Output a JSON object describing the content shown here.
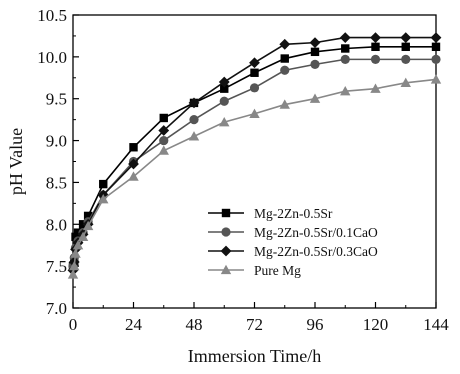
{
  "chart_data": {
    "type": "line",
    "xlabel": "Immersion Time/h",
    "ylabel": "pH Value",
    "xlim": [
      0,
      144
    ],
    "ylim": [
      7.0,
      10.5
    ],
    "xticks": [
      0,
      24,
      48,
      72,
      96,
      120,
      144
    ],
    "xtick_labels": [
      "0",
      "24",
      "48",
      "72",
      "96",
      "120",
      "144"
    ],
    "yticks": [
      7.0,
      7.5,
      8.0,
      8.5,
      9.0,
      9.5,
      10.0,
      10.5
    ],
    "ytick_labels": [
      "7.0",
      "7.5",
      "8.0",
      "8.5",
      "9.0",
      "9.5",
      "10.0",
      "10.5"
    ],
    "grid": false,
    "legend_position": "lower-right",
    "series": [
      {
        "name": "Mg-2Zn-0.5Sr",
        "marker": "square",
        "color": "#000000",
        "x": [
          0,
          0.5,
          1,
          2,
          4,
          6,
          12,
          24,
          36,
          48,
          60,
          72,
          84,
          96,
          108,
          120,
          132,
          144
        ],
        "y": [
          7.5,
          7.55,
          7.85,
          7.9,
          8.0,
          8.1,
          8.48,
          8.92,
          9.27,
          9.45,
          9.62,
          9.81,
          9.98,
          10.06,
          10.1,
          10.12,
          10.12,
          10.12
        ]
      },
      {
        "name": "Mg-2Zn-0.5Sr/0.1CaO",
        "marker": "circle",
        "color": "#555555",
        "x": [
          0,
          0.5,
          1,
          2,
          4,
          6,
          12,
          24,
          36,
          48,
          60,
          72,
          84,
          96,
          108,
          120,
          132,
          144
        ],
        "y": [
          7.5,
          7.6,
          7.72,
          7.8,
          7.9,
          8.03,
          8.35,
          8.75,
          9.0,
          9.25,
          9.47,
          9.63,
          9.84,
          9.91,
          9.97,
          9.97,
          9.97,
          9.97
        ]
      },
      {
        "name": "Mg-2Zn-0.5Sr/0.3CaO",
        "marker": "diamond",
        "color": "#111111",
        "x": [
          0,
          0.5,
          1,
          2,
          4,
          6,
          12,
          24,
          36,
          48,
          60,
          72,
          84,
          96,
          108,
          120,
          132,
          144
        ],
        "y": [
          7.45,
          7.55,
          7.7,
          7.78,
          7.88,
          8.0,
          8.35,
          8.72,
          9.12,
          9.45,
          9.7,
          9.93,
          10.15,
          10.17,
          10.23,
          10.23,
          10.23,
          10.23
        ]
      },
      {
        "name": "Pure Mg",
        "marker": "triangle",
        "color": "#888888",
        "x": [
          0,
          0.5,
          1,
          2,
          4,
          6,
          12,
          24,
          36,
          48,
          60,
          72,
          84,
          96,
          108,
          120,
          132,
          144
        ],
        "y": [
          7.4,
          7.5,
          7.65,
          7.75,
          7.85,
          7.98,
          8.3,
          8.57,
          8.88,
          9.05,
          9.22,
          9.32,
          9.43,
          9.5,
          9.59,
          9.62,
          9.69,
          9.73
        ]
      }
    ]
  }
}
